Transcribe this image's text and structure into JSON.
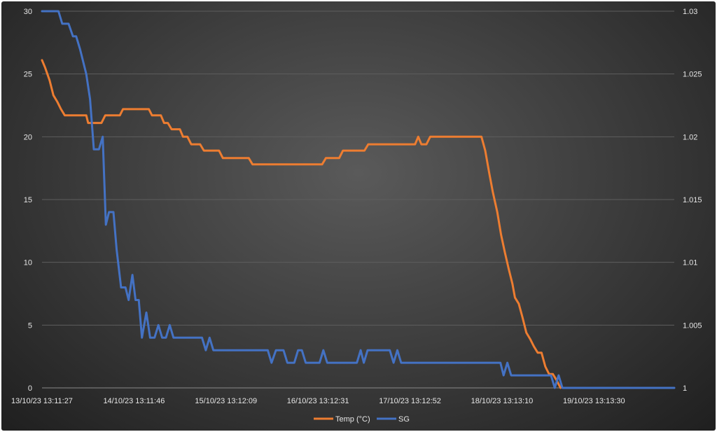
{
  "chart_data": {
    "type": "line",
    "title": "",
    "xlabel": "",
    "ylabel": "",
    "x_tick_labels": [
      "13/10/23 13:11:27",
      "14/10/23 13:11:46",
      "15/10/23 13:12:09",
      "16/10/23 13:12:31",
      "17/10/23 13:12:52",
      "18/10/23 13:13:10",
      "19/10/23 13:13:30"
    ],
    "y_left_ticks": [
      "0",
      "5",
      "10",
      "15",
      "20",
      "25",
      "30"
    ],
    "y_right_ticks": [
      "1",
      "1.005",
      "1.01",
      "1.015",
      "1.02",
      "1.025",
      "1.03"
    ],
    "ylim_left": [
      0,
      30
    ],
    "ylim_right": [
      1,
      1.03
    ],
    "x_range": [
      0,
      100
    ],
    "grid": true,
    "legend_position": "bottom",
    "colors": {
      "temp": "#ed7d31",
      "sg": "#4472c4",
      "grid": "#5e5e5e",
      "text": "#e6e6e6"
    },
    "series": [
      {
        "name": "Temp (°C)",
        "axis": "left",
        "points": [
          [
            0,
            26.1
          ],
          [
            0.5,
            25.5
          ],
          [
            1.2,
            24.5
          ],
          [
            1.8,
            23.3
          ],
          [
            2.4,
            22.8
          ],
          [
            3,
            22.2
          ],
          [
            3.6,
            21.7
          ],
          [
            7,
            21.7
          ],
          [
            7.3,
            21.1
          ],
          [
            9.4,
            21.1
          ],
          [
            10,
            21.7
          ],
          [
            12.3,
            21.7
          ],
          [
            12.8,
            22.2
          ],
          [
            16.9,
            22.2
          ],
          [
            17.4,
            21.7
          ],
          [
            18.8,
            21.7
          ],
          [
            19.3,
            21.1
          ],
          [
            19.9,
            21.1
          ],
          [
            20.5,
            20.6
          ],
          [
            21.8,
            20.6
          ],
          [
            22.3,
            20.0
          ],
          [
            23,
            20.0
          ],
          [
            23.6,
            19.4
          ],
          [
            25,
            19.4
          ],
          [
            25.6,
            18.9
          ],
          [
            28,
            18.9
          ],
          [
            28.6,
            18.3
          ],
          [
            32.7,
            18.3
          ],
          [
            33.3,
            17.8
          ],
          [
            44.3,
            17.8
          ],
          [
            44.9,
            18.3
          ],
          [
            47,
            18.3
          ],
          [
            47.6,
            18.9
          ],
          [
            51,
            18.9
          ],
          [
            51.6,
            19.4
          ],
          [
            59,
            19.4
          ],
          [
            59.5,
            20.0
          ],
          [
            60,
            19.4
          ],
          [
            60.8,
            19.4
          ],
          [
            61.4,
            20.0
          ],
          [
            69.5,
            20.0
          ],
          [
            70.1,
            18.9
          ],
          [
            70.7,
            17.2
          ],
          [
            71.3,
            15.6
          ],
          [
            72,
            14.0
          ],
          [
            72.6,
            12.2
          ],
          [
            73.2,
            10.8
          ],
          [
            73.8,
            9.5
          ],
          [
            74.4,
            8.3
          ],
          [
            74.8,
            7.2
          ],
          [
            75.4,
            6.7
          ],
          [
            76,
            5.6
          ],
          [
            76.6,
            4.4
          ],
          [
            77.2,
            3.9
          ],
          [
            77.8,
            3.3
          ],
          [
            78.4,
            2.8
          ],
          [
            79,
            2.8
          ],
          [
            79.6,
            1.7
          ],
          [
            80.2,
            1.1
          ],
          [
            80.8,
            1.1
          ],
          [
            81.4,
            0.6
          ],
          [
            82,
            0
          ]
        ]
      },
      {
        "name": "SG",
        "axis": "right",
        "points": [
          [
            0,
            1.03
          ],
          [
            2.6,
            1.03
          ],
          [
            3.2,
            1.029
          ],
          [
            4.2,
            1.029
          ],
          [
            4.9,
            1.028
          ],
          [
            5.4,
            1.028
          ],
          [
            6,
            1.027
          ],
          [
            6.5,
            1.026
          ],
          [
            7,
            1.025
          ],
          [
            7.6,
            1.023
          ],
          [
            8.2,
            1.019
          ],
          [
            9,
            1.019
          ],
          [
            9.6,
            1.02
          ],
          [
            10.1,
            1.013
          ],
          [
            10.6,
            1.014
          ],
          [
            11.3,
            1.014
          ],
          [
            11.8,
            1.011
          ],
          [
            12.5,
            1.008
          ],
          [
            13.2,
            1.008
          ],
          [
            13.7,
            1.007
          ],
          [
            14.3,
            1.009
          ],
          [
            14.8,
            1.007
          ],
          [
            15.3,
            1.007
          ],
          [
            15.8,
            1.004
          ],
          [
            16.5,
            1.006
          ],
          [
            17.1,
            1.004
          ],
          [
            17.8,
            1.004
          ],
          [
            18.4,
            1.005
          ],
          [
            19,
            1.004
          ],
          [
            19.6,
            1.004
          ],
          [
            20.2,
            1.005
          ],
          [
            20.8,
            1.004
          ],
          [
            25.3,
            1.004
          ],
          [
            25.9,
            1.003
          ],
          [
            26.5,
            1.004
          ],
          [
            27.1,
            1.003
          ],
          [
            35.7,
            1.003
          ],
          [
            36.3,
            1.002
          ],
          [
            37,
            1.003
          ],
          [
            38.2,
            1.003
          ],
          [
            38.8,
            1.002
          ],
          [
            39.9,
            1.002
          ],
          [
            40.5,
            1.003
          ],
          [
            41.1,
            1.003
          ],
          [
            41.7,
            1.002
          ],
          [
            43.9,
            1.002
          ],
          [
            44.5,
            1.003
          ],
          [
            45.1,
            1.002
          ],
          [
            49.8,
            1.002
          ],
          [
            50.4,
            1.003
          ],
          [
            50.9,
            1.002
          ],
          [
            51.5,
            1.003
          ],
          [
            55,
            1.003
          ],
          [
            55.6,
            1.002
          ],
          [
            56.2,
            1.003
          ],
          [
            56.8,
            1.002
          ],
          [
            72.5,
            1.002
          ],
          [
            73,
            1.001
          ],
          [
            73.6,
            1.002
          ],
          [
            74.2,
            1.001
          ],
          [
            80.5,
            1.001
          ],
          [
            81.1,
            1.0
          ],
          [
            81.7,
            1.001
          ],
          [
            82.3,
            1.0
          ],
          [
            100,
            1.0
          ]
        ]
      }
    ]
  }
}
